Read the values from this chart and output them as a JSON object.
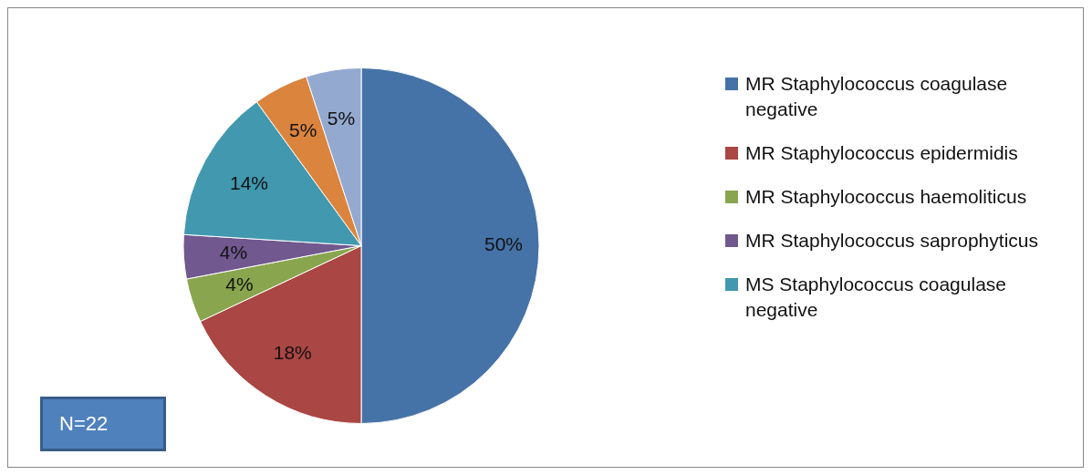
{
  "chart_data": {
    "type": "pie",
    "categories": [
      "MR Staphylococcus coagulase negative",
      "MR Staphylococcus epidermidis",
      "MR Staphylococcus haemoliticus",
      "MR Staphylococcus saprophyticus",
      "MS Staphylococcus coagulase negative",
      null,
      null
    ],
    "values": [
      50,
      18,
      4,
      4,
      14,
      5,
      5
    ],
    "value_labels": [
      "50%",
      "18%",
      "4%",
      "4%",
      "14%",
      "5%",
      "5%"
    ],
    "colors": [
      "#4572a7",
      "#aa4643",
      "#89a54e",
      "#71588f",
      "#4198af",
      "#db843d",
      "#93a9cf"
    ],
    "legend": "right",
    "annotations": [
      "N=22"
    ]
  }
}
